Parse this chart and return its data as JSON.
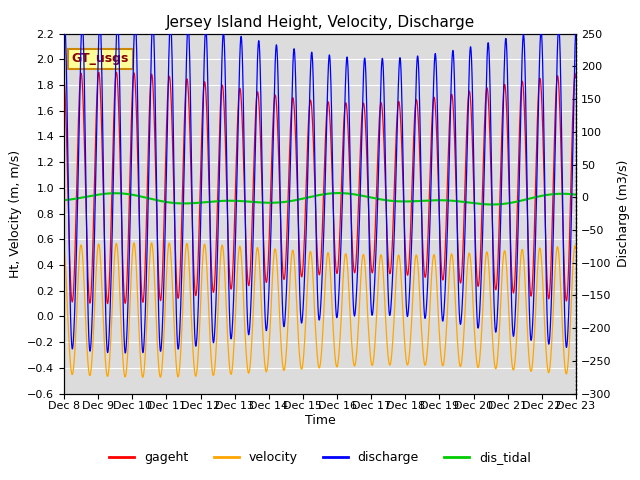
{
  "title": "Jersey Island Height, Velocity, Discharge",
  "xlabel": "Time",
  "ylabel_left": "Ht, Velocity (m, m/s)",
  "ylabel_right": "Discharge (m3/s)",
  "ylim_left": [
    -0.6,
    2.2
  ],
  "ylim_right": [
    -300,
    250
  ],
  "x_tick_days": [
    8,
    9,
    10,
    11,
    12,
    13,
    14,
    15,
    16,
    17,
    18,
    19,
    20,
    21,
    22,
    23
  ],
  "x_tick_labels": [
    "Dec 8",
    "Dec 9",
    "Dec 10",
    "Dec 11",
    "Dec 12",
    "Dec 13",
    "Dec 14",
    "Dec 15",
    "Dec 16",
    "Dec 17",
    "Dec 18",
    "Dec 19",
    "Dec 20",
    "Dec 21",
    "Dec 22",
    "Dec 23"
  ],
  "gageht_color": "#ff0000",
  "velocity_color": "#ffa500",
  "discharge_color": "#0000ff",
  "dis_tidal_color": "#00cc00",
  "background_color": "#dcdcdc",
  "legend_label_box": "GT_usgs",
  "legend_box_bg": "#ffff99",
  "legend_box_border": "#cc8800",
  "title_fontsize": 11,
  "axis_fontsize": 9,
  "tick_fontsize": 8,
  "legend_fontsize": 9,
  "fig_width": 6.4,
  "fig_height": 4.8,
  "fig_dpi": 100
}
